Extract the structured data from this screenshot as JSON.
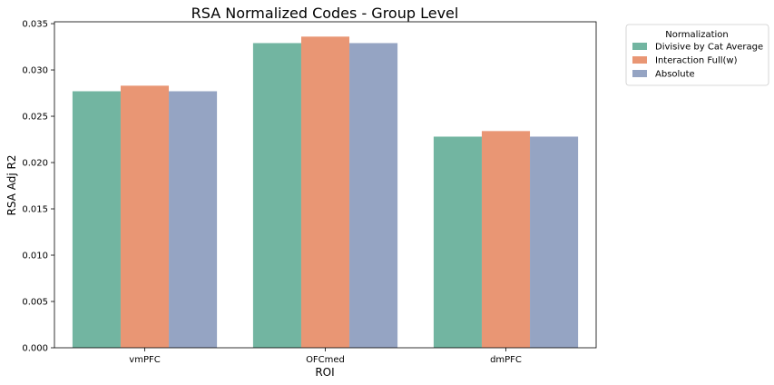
{
  "chart_data": {
    "type": "bar",
    "title": "RSA Normalized Codes - Group Level",
    "xlabel": "ROI",
    "ylabel": "RSA Adj R2",
    "categories": [
      "vmPFC",
      "OFCmed",
      "dmPFC"
    ],
    "series": [
      {
        "name": "Divisive by Cat Average",
        "color": "#72b5a1",
        "values": [
          0.0277,
          0.0329,
          0.0228
        ]
      },
      {
        "name": "Interaction Full(w)",
        "color": "#e99674",
        "values": [
          0.0283,
          0.0336,
          0.0234
        ]
      },
      {
        "name": "Absolute",
        "color": "#95a4c3",
        "values": [
          0.0277,
          0.0329,
          0.0228
        ]
      }
    ],
    "ylim": [
      0,
      0.0352
    ],
    "yticks": [
      "0.000",
      "0.005",
      "0.010",
      "0.015",
      "0.020",
      "0.025",
      "0.030",
      "0.035"
    ],
    "legend": {
      "title": "Normalization",
      "placement": "outside-top-right"
    },
    "grid": false
  }
}
